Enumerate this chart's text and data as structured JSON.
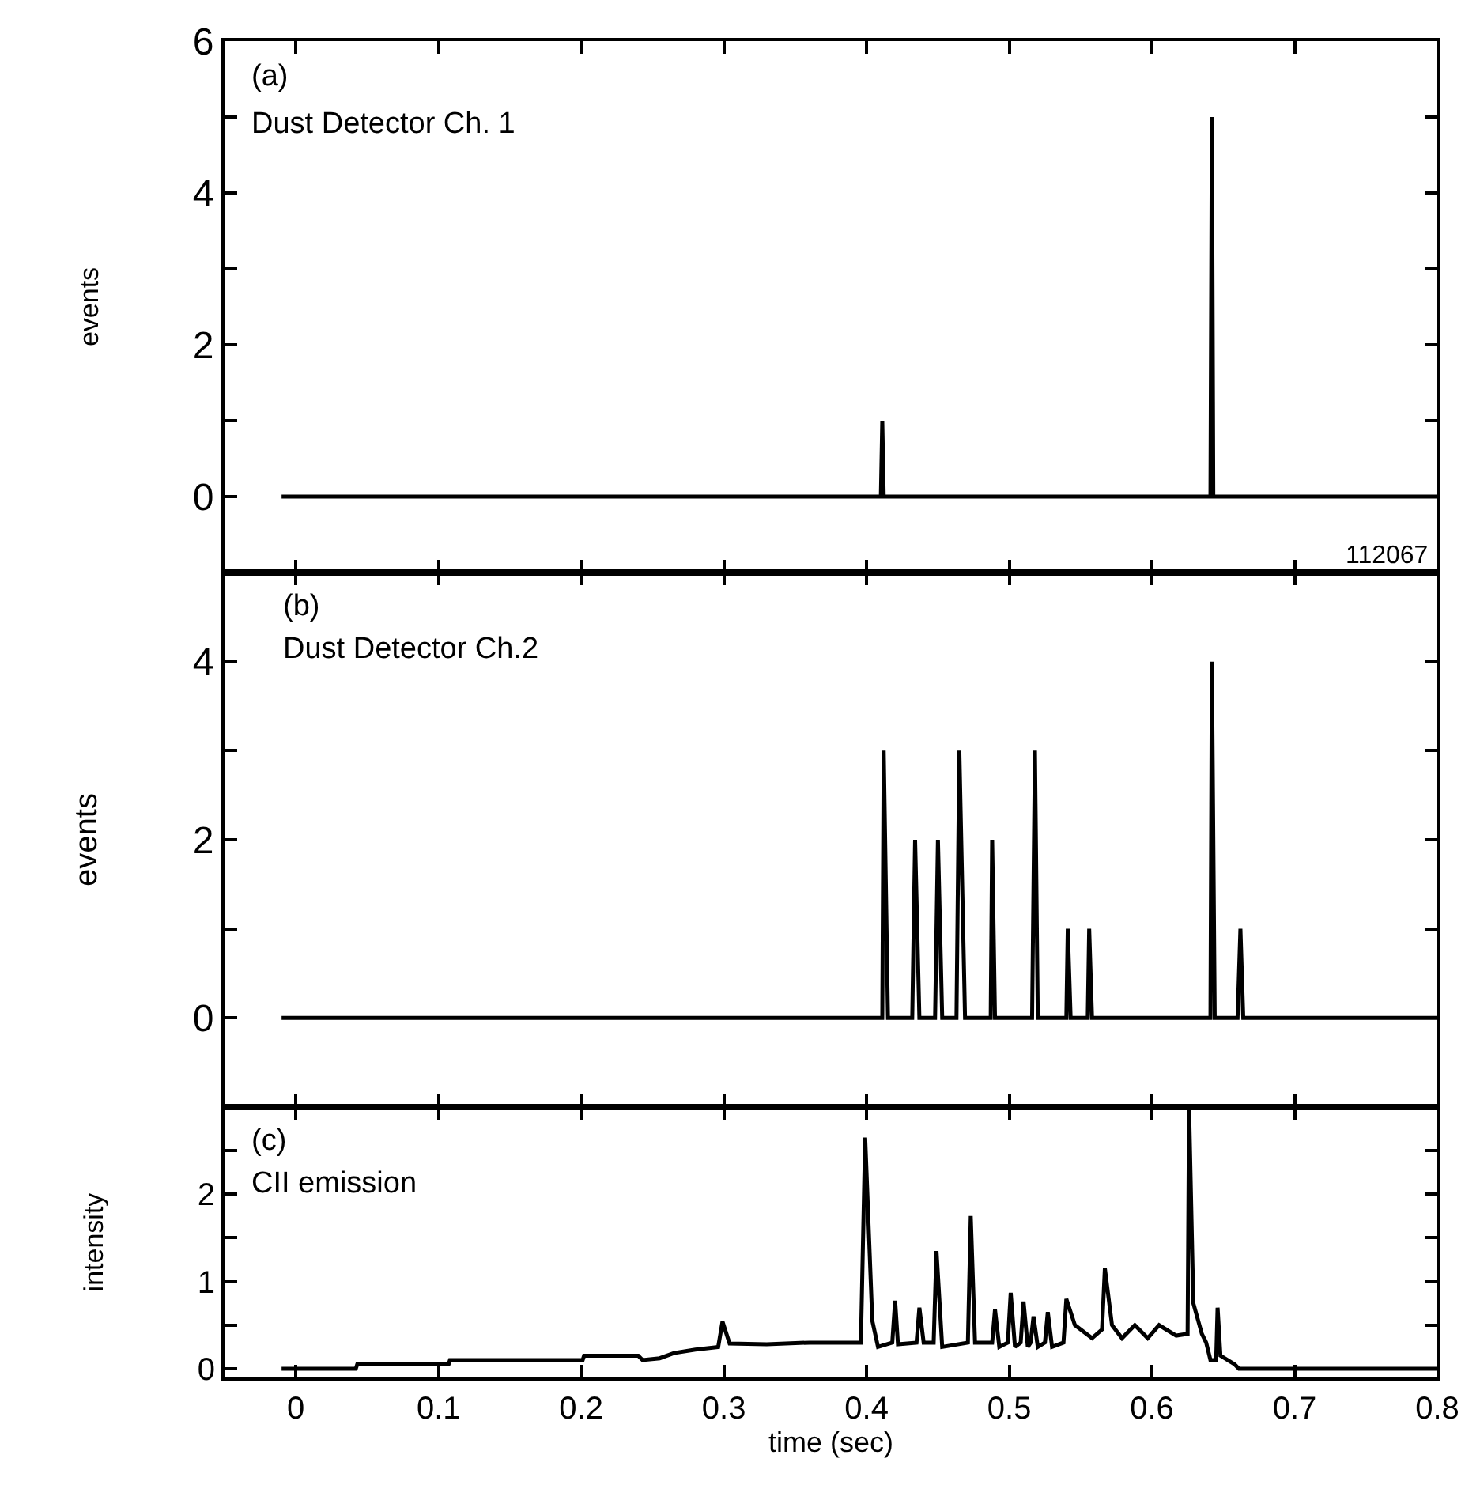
{
  "chart_data": [
    {
      "type": "line",
      "ylabel": "events",
      "annotations": [
        "(a)",
        "Dust Detector Ch. 1",
        "112067"
      ],
      "color": "#000000",
      "line_style": "solid",
      "marker": "none",
      "tick_labels": "y",
      "x": [
        -0.01,
        0.41,
        0.411,
        0.412,
        0.641,
        0.642,
        0.643,
        0.8
      ],
      "values": [
        0,
        0,
        1,
        0,
        0,
        5,
        0,
        0
      ],
      "xlim": [
        -0.05,
        0.8
      ],
      "xticks": [
        {
          "value": 0,
          "label": null
        },
        {
          "value": 0.1,
          "label": null
        },
        {
          "value": 0.2,
          "label": null
        },
        {
          "value": 0.3,
          "label": null
        },
        {
          "value": 0.4,
          "label": null
        },
        {
          "value": 0.5,
          "label": null
        },
        {
          "value": 0.6,
          "label": null
        },
        {
          "value": 0.7,
          "label": null
        },
        {
          "value": 0.8,
          "label": null
        }
      ],
      "ylim": [
        -1,
        6
      ],
      "yticks": [
        0,
        {
          "value": 1,
          "label": null
        },
        2,
        {
          "value": 3,
          "label": null
        },
        4,
        {
          "value": 5,
          "label": null
        },
        6
      ]
    },
    {
      "type": "line",
      "ylabel": "events",
      "annotations": [
        "(b)",
        "Dust Detector Ch.2"
      ],
      "color": "#000000",
      "line_style": "solid",
      "marker": "none",
      "tick_labels": "y",
      "x": [
        -0.01,
        0.411,
        0.412,
        0.415,
        0.432,
        0.434,
        0.437,
        0.448,
        0.45,
        0.453,
        0.463,
        0.465,
        0.469,
        0.487,
        0.488,
        0.49,
        0.516,
        0.518,
        0.52,
        0.54,
        0.541,
        0.543,
        0.555,
        0.556,
        0.558,
        0.641,
        0.642,
        0.644,
        0.66,
        0.662,
        0.664,
        0.8
      ],
      "values": [
        0,
        0,
        3,
        0,
        0,
        2,
        0,
        0,
        2,
        0,
        0,
        3,
        0,
        0,
        2,
        0,
        0,
        3,
        0,
        0,
        1,
        0,
        0,
        1,
        0,
        0,
        4,
        0,
        0,
        1,
        0,
        0
      ],
      "xlim": [
        -0.05,
        0.8
      ],
      "xticks": [
        {
          "value": 0,
          "label": null
        },
        {
          "value": 0.1,
          "label": null
        },
        {
          "value": 0.2,
          "label": null
        },
        {
          "value": 0.3,
          "label": null
        },
        {
          "value": 0.4,
          "label": null
        },
        {
          "value": 0.5,
          "label": null
        },
        {
          "value": 0.6,
          "label": null
        },
        {
          "value": 0.7,
          "label": null
        },
        {
          "value": 0.8,
          "label": null
        }
      ],
      "ylim": [
        -1,
        5
      ],
      "yticks": [
        0,
        {
          "value": 1,
          "label": null
        },
        2,
        {
          "value": 3,
          "label": null
        },
        4,
        {
          "value": 5,
          "label": null
        }
      ]
    },
    {
      "type": "line",
      "ylabel": "intensity",
      "xlabel": "time (sec)",
      "annotations": [
        "(c)",
        "CII emission"
      ],
      "color": "#000000",
      "line_style": "solid",
      "marker": "none",
      "x": [
        -0.01,
        0.042,
        0.043,
        0.107,
        0.108,
        0.201,
        0.202,
        0.24,
        0.243,
        0.255,
        0.265,
        0.28,
        0.296,
        0.299,
        0.304,
        0.33,
        0.36,
        0.396,
        0.399,
        0.404,
        0.408,
        0.418,
        0.42,
        0.422,
        0.435,
        0.437,
        0.44,
        0.447,
        0.449,
        0.453,
        0.471,
        0.473,
        0.476,
        0.488,
        0.49,
        0.493,
        0.499,
        0.501,
        0.504,
        0.508,
        0.51,
        0.513,
        0.515,
        0.517,
        0.52,
        0.525,
        0.527,
        0.53,
        0.538,
        0.54,
        0.546,
        0.558,
        0.565,
        0.567,
        0.572,
        0.579,
        0.588,
        0.597,
        0.605,
        0.617,
        0.625,
        0.626,
        0.629,
        0.635,
        0.638,
        0.641,
        0.645,
        0.646,
        0.648,
        0.658,
        0.661,
        0.8
      ],
      "values": [
        0,
        0,
        0.05,
        0.05,
        0.1,
        0.1,
        0.15,
        0.15,
        0.1,
        0.12,
        0.18,
        0.22,
        0.25,
        0.54,
        0.29,
        0.28,
        0.3,
        0.3,
        2.65,
        0.55,
        0.25,
        0.3,
        0.78,
        0.28,
        0.3,
        0.7,
        0.3,
        0.3,
        1.35,
        0.25,
        0.3,
        1.75,
        0.3,
        0.3,
        0.68,
        0.25,
        0.3,
        0.87,
        0.25,
        0.3,
        0.77,
        0.25,
        0.3,
        0.6,
        0.25,
        0.3,
        0.65,
        0.25,
        0.3,
        0.8,
        0.5,
        0.35,
        0.45,
        1.15,
        0.5,
        0.35,
        0.5,
        0.35,
        0.5,
        0.38,
        0.4,
        3,
        0.75,
        0.4,
        0.3,
        0.1,
        0.1,
        0.7,
        0.15,
        0.05,
        0,
        0
      ],
      "xlim": [
        -0.05,
        0.8
      ],
      "xticks": [
        0,
        0.1,
        0.2,
        0.3,
        0.4,
        0.5,
        0.6,
        0.7,
        0.8
      ],
      "ylim": [
        -0.1,
        3
      ],
      "yticks": [
        0,
        {
          "value": 0.5,
          "label": null
        },
        1,
        {
          "value": 1.5,
          "label": null
        },
        2,
        {
          "value": 2.5,
          "label": null
        },
        {
          "value": 3,
          "label": null
        }
      ]
    }
  ]
}
